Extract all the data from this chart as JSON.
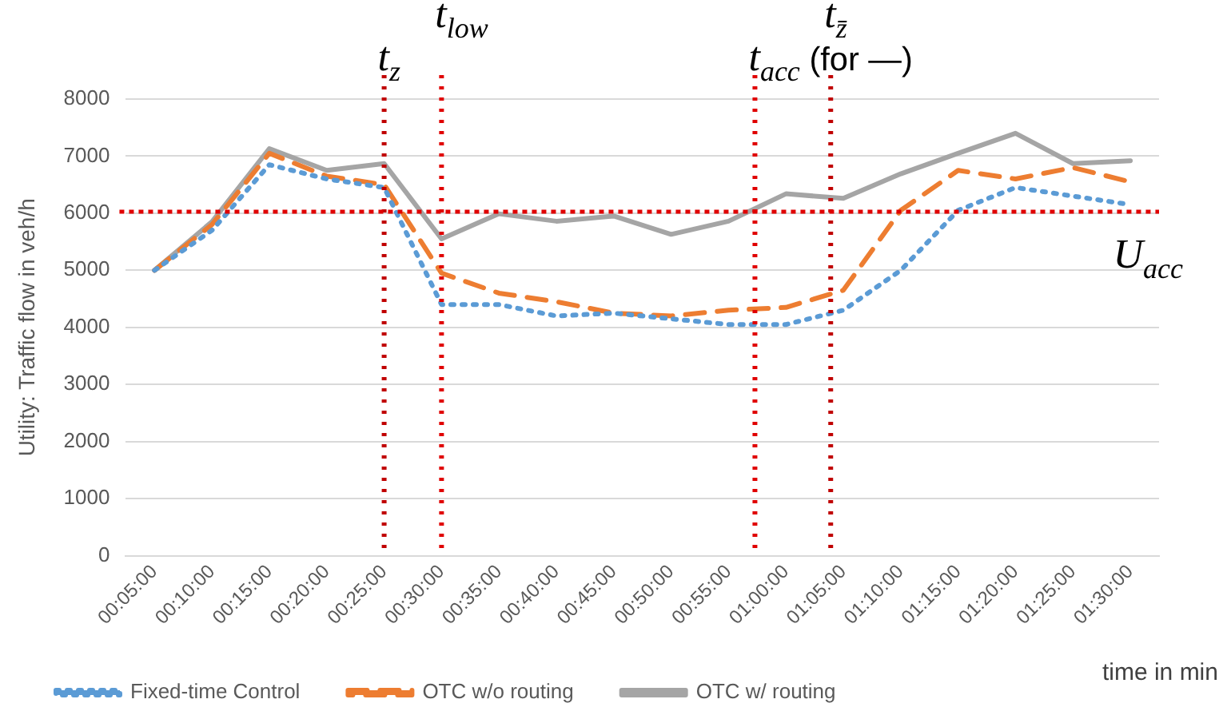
{
  "chart_data": {
    "type": "line",
    "ylabel": "Utility: Traffic flow in veh/h",
    "xlabel": "time in min",
    "x": [
      0.0833,
      0.1667,
      0.25,
      0.3333,
      0.4167,
      0.5,
      0.5833,
      0.6667,
      0.75,
      0.8333,
      0.9167,
      1,
      1.0833,
      1.1667,
      1.25,
      1.3333,
      1.4167,
      1.5
    ],
    "series": [
      {
        "name": "Fixed-time Control",
        "color": "#5b9bd5",
        "line_style": "dotted",
        "values": [
          5000,
          5700,
          6850,
          6600,
          6450,
          4400,
          4400,
          4200,
          4250,
          4150,
          4050,
          4050,
          4300,
          5000,
          6050,
          6450,
          6300,
          6150
        ]
      },
      {
        "name": "OTC w/o routing",
        "color": "#ed7d31",
        "line_style": "dashed",
        "values": [
          5000,
          5800,
          7050,
          6650,
          6500,
          4950,
          4600,
          4450,
          4250,
          4200,
          4300,
          4350,
          4650,
          6050,
          6750,
          6600,
          6800,
          6550
        ]
      },
      {
        "name": "OTC w/ routing",
        "color": "#a5a5a5",
        "line_style": "solid",
        "values": [
          5000,
          5850,
          7130,
          6750,
          6870,
          5550,
          5990,
          5860,
          5950,
          5630,
          5860,
          6340,
          6260,
          6690,
          7050,
          7400,
          6870,
          6920
        ]
      }
    ],
    "xlim": [
      0.0417,
      1.5417
    ],
    "xticks": [
      {
        "value": 0.0833,
        "label": "00:05:00"
      },
      {
        "value": 0.1667,
        "label": "00:10:00"
      },
      {
        "value": 0.25,
        "label": "00:15:00"
      },
      {
        "value": 0.3333,
        "label": "00:20:00"
      },
      {
        "value": 0.4167,
        "label": "00:25:00"
      },
      {
        "value": 0.5,
        "label": "00:30:00"
      },
      {
        "value": 0.5833,
        "label": "00:35:00"
      },
      {
        "value": 0.6667,
        "label": "00:40:00"
      },
      {
        "value": 0.75,
        "label": "00:45:00"
      },
      {
        "value": 0.8333,
        "label": "00:50:00"
      },
      {
        "value": 0.9167,
        "label": "00:55:00"
      },
      {
        "value": 1,
        "label": "01:00:00"
      },
      {
        "value": 1.0833,
        "label": "01:05:00"
      },
      {
        "value": 1.1667,
        "label": "01:10:00"
      },
      {
        "value": 1.25,
        "label": "01:15:00"
      },
      {
        "value": 1.3333,
        "label": "01:20:00"
      },
      {
        "value": 1.4167,
        "label": "01:25:00"
      },
      {
        "value": 1.5,
        "label": "01:30:00"
      }
    ],
    "ylim": [
      0,
      8000
    ],
    "yticks": [
      0,
      1000,
      2000,
      3000,
      4000,
      5000,
      6000,
      7000,
      8000
    ],
    "grid": "y",
    "legend": "bottom",
    "marker": "none",
    "ref_lines": [
      {
        "axis": "x",
        "value": 0.4167,
        "label": "t$_{z}$",
        "color": "#c00000",
        "line_style": "dotted"
      },
      {
        "axis": "x",
        "value": 0.5,
        "label": "t$_{low}$",
        "color": "#e00000",
        "line_style": "dotted"
      },
      {
        "axis": "x",
        "value": 0.955,
        "label": "t$_{acc}$ (for —)",
        "color": "#e00000",
        "line_style": "dotted"
      },
      {
        "axis": "x",
        "value": 1.065,
        "label": "t$_{z̄}$",
        "color": "#c00000",
        "line_style": "dotted"
      },
      {
        "axis": "y",
        "value": 6000,
        "label": "U$_{acc}$",
        "color": "#e00000",
        "line_style": "dotted"
      }
    ]
  }
}
